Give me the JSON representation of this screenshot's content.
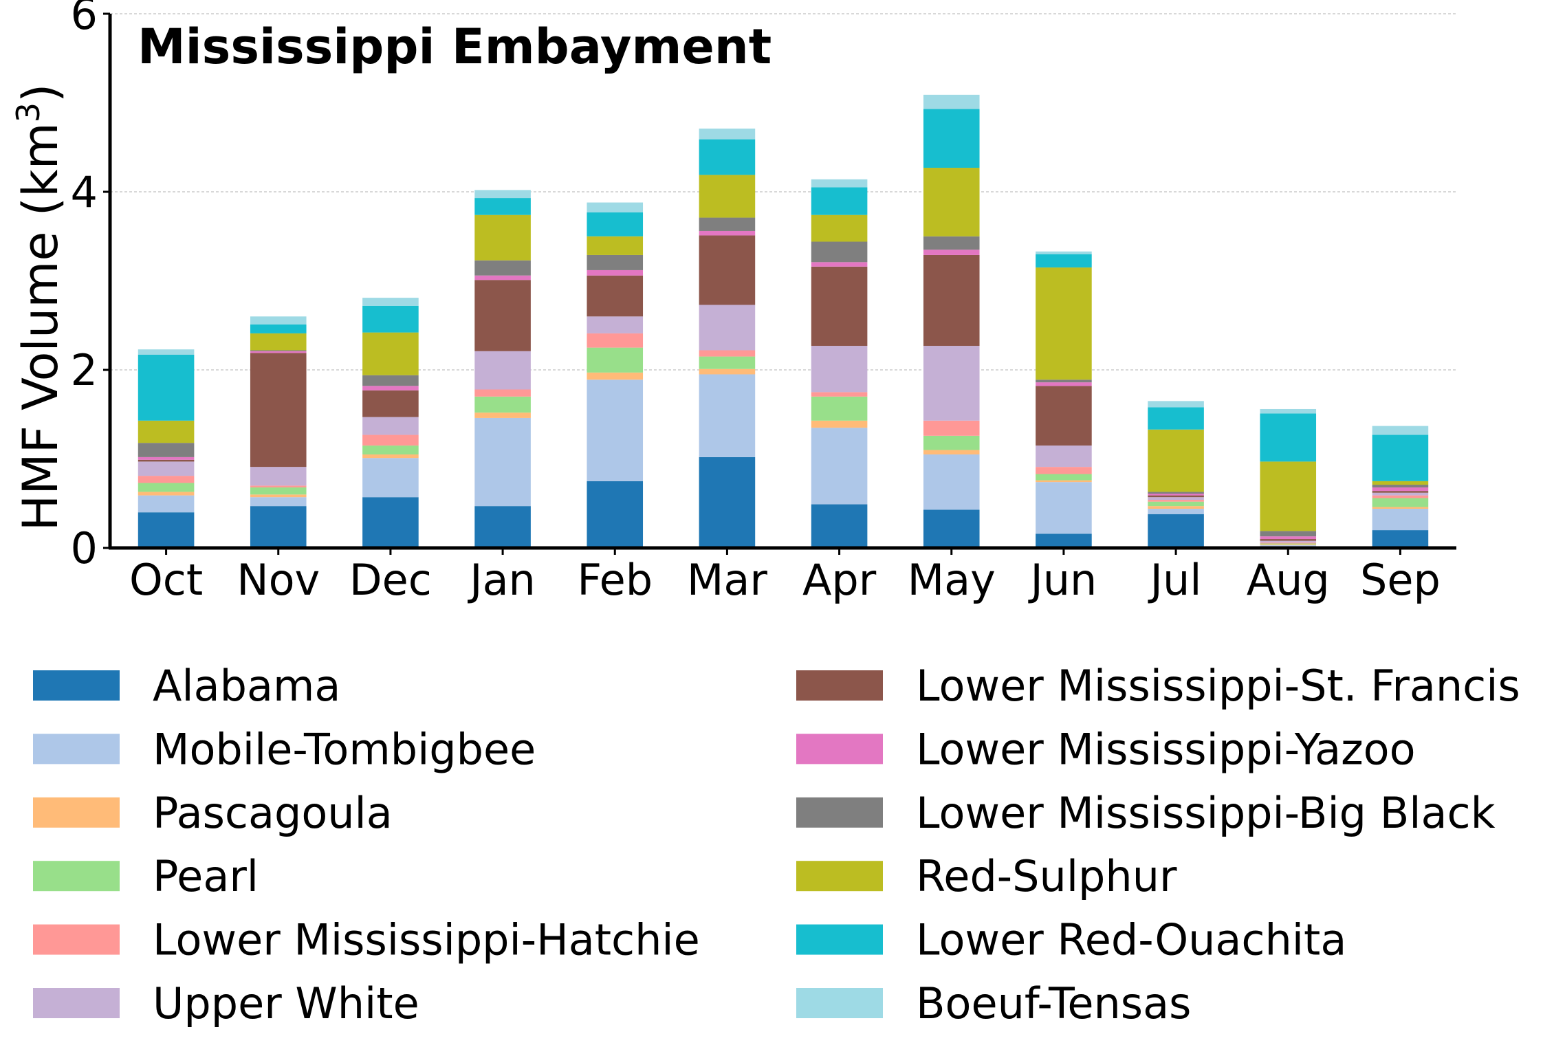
{
  "chart_data": {
    "type": "bar",
    "stacked": true,
    "title": "Mississippi Embayment",
    "ylabel": "HMF Volume (km",
    "ylabel_sup": "3",
    "ylabel_close": ")",
    "xlabel": "",
    "ylim": [
      0,
      6
    ],
    "yticks": [
      "0",
      "2",
      "4",
      "6"
    ],
    "grid": "horizontal dashed",
    "legend_position": "below plot, two columns",
    "categories": [
      "Oct",
      "Nov",
      "Dec",
      "Jan",
      "Feb",
      "Mar",
      "Apr",
      "May",
      "Jun",
      "Jul",
      "Aug",
      "Sep"
    ],
    "series": [
      {
        "name": "Alabama",
        "color": "#1f77b4",
        "values": [
          0.4,
          0.47,
          0.57,
          0.47,
          0.75,
          1.02,
          0.49,
          0.43,
          0.16,
          0.38,
          0.02,
          0.2
        ]
      },
      {
        "name": "Mobile-Tombigbee",
        "color": "#aec7e8",
        "values": [
          0.19,
          0.1,
          0.44,
          0.99,
          1.14,
          0.93,
          0.86,
          0.62,
          0.58,
          0.06,
          0.01,
          0.24
        ]
      },
      {
        "name": "Pascagoula",
        "color": "#ffbb78",
        "values": [
          0.04,
          0.03,
          0.04,
          0.06,
          0.08,
          0.06,
          0.08,
          0.05,
          0.02,
          0.03,
          0.01,
          0.02
        ]
      },
      {
        "name": "Pearl",
        "color": "#98df8a",
        "values": [
          0.1,
          0.08,
          0.1,
          0.18,
          0.28,
          0.14,
          0.27,
          0.16,
          0.07,
          0.05,
          0.01,
          0.1
        ]
      },
      {
        "name": "Lower Mississippi-Hatchie",
        "color": "#ff9896",
        "values": [
          0.08,
          0.02,
          0.12,
          0.08,
          0.16,
          0.07,
          0.05,
          0.17,
          0.08,
          0.02,
          0.01,
          0.03
        ]
      },
      {
        "name": "Upper White",
        "color": "#c5b0d5",
        "values": [
          0.16,
          0.21,
          0.2,
          0.43,
          0.19,
          0.51,
          0.52,
          0.84,
          0.24,
          0.03,
          0.02,
          0.03
        ]
      },
      {
        "name": "Lower Mississippi-St. Francis",
        "color": "#8c564b",
        "values": [
          0.02,
          1.28,
          0.3,
          0.8,
          0.46,
          0.78,
          0.89,
          1.02,
          0.67,
          0.02,
          0.02,
          0.02
        ]
      },
      {
        "name": "Lower Mississippi-Yazoo",
        "color": "#e377c2",
        "values": [
          0.03,
          0.02,
          0.05,
          0.05,
          0.06,
          0.05,
          0.05,
          0.06,
          0.04,
          0.02,
          0.03,
          0.04
        ]
      },
      {
        "name": "Lower Mississippi-Big Black",
        "color": "#7f7f7f",
        "values": [
          0.16,
          0.01,
          0.12,
          0.17,
          0.17,
          0.15,
          0.23,
          0.15,
          0.03,
          0.02,
          0.06,
          0.03
        ]
      },
      {
        "name": "Red-Sulphur",
        "color": "#bcbd22",
        "values": [
          0.25,
          0.19,
          0.48,
          0.51,
          0.21,
          0.48,
          0.3,
          0.77,
          1.26,
          0.7,
          0.78,
          0.04
        ]
      },
      {
        "name": "Lower Red-Ouachita",
        "color": "#17becf",
        "values": [
          0.74,
          0.1,
          0.3,
          0.19,
          0.27,
          0.4,
          0.31,
          0.66,
          0.15,
          0.25,
          0.54,
          0.52
        ]
      },
      {
        "name": "Boeuf-Tensas",
        "color": "#9edae5",
        "values": [
          0.06,
          0.09,
          0.09,
          0.09,
          0.11,
          0.12,
          0.09,
          0.16,
          0.03,
          0.07,
          0.05,
          0.1
        ]
      }
    ]
  }
}
